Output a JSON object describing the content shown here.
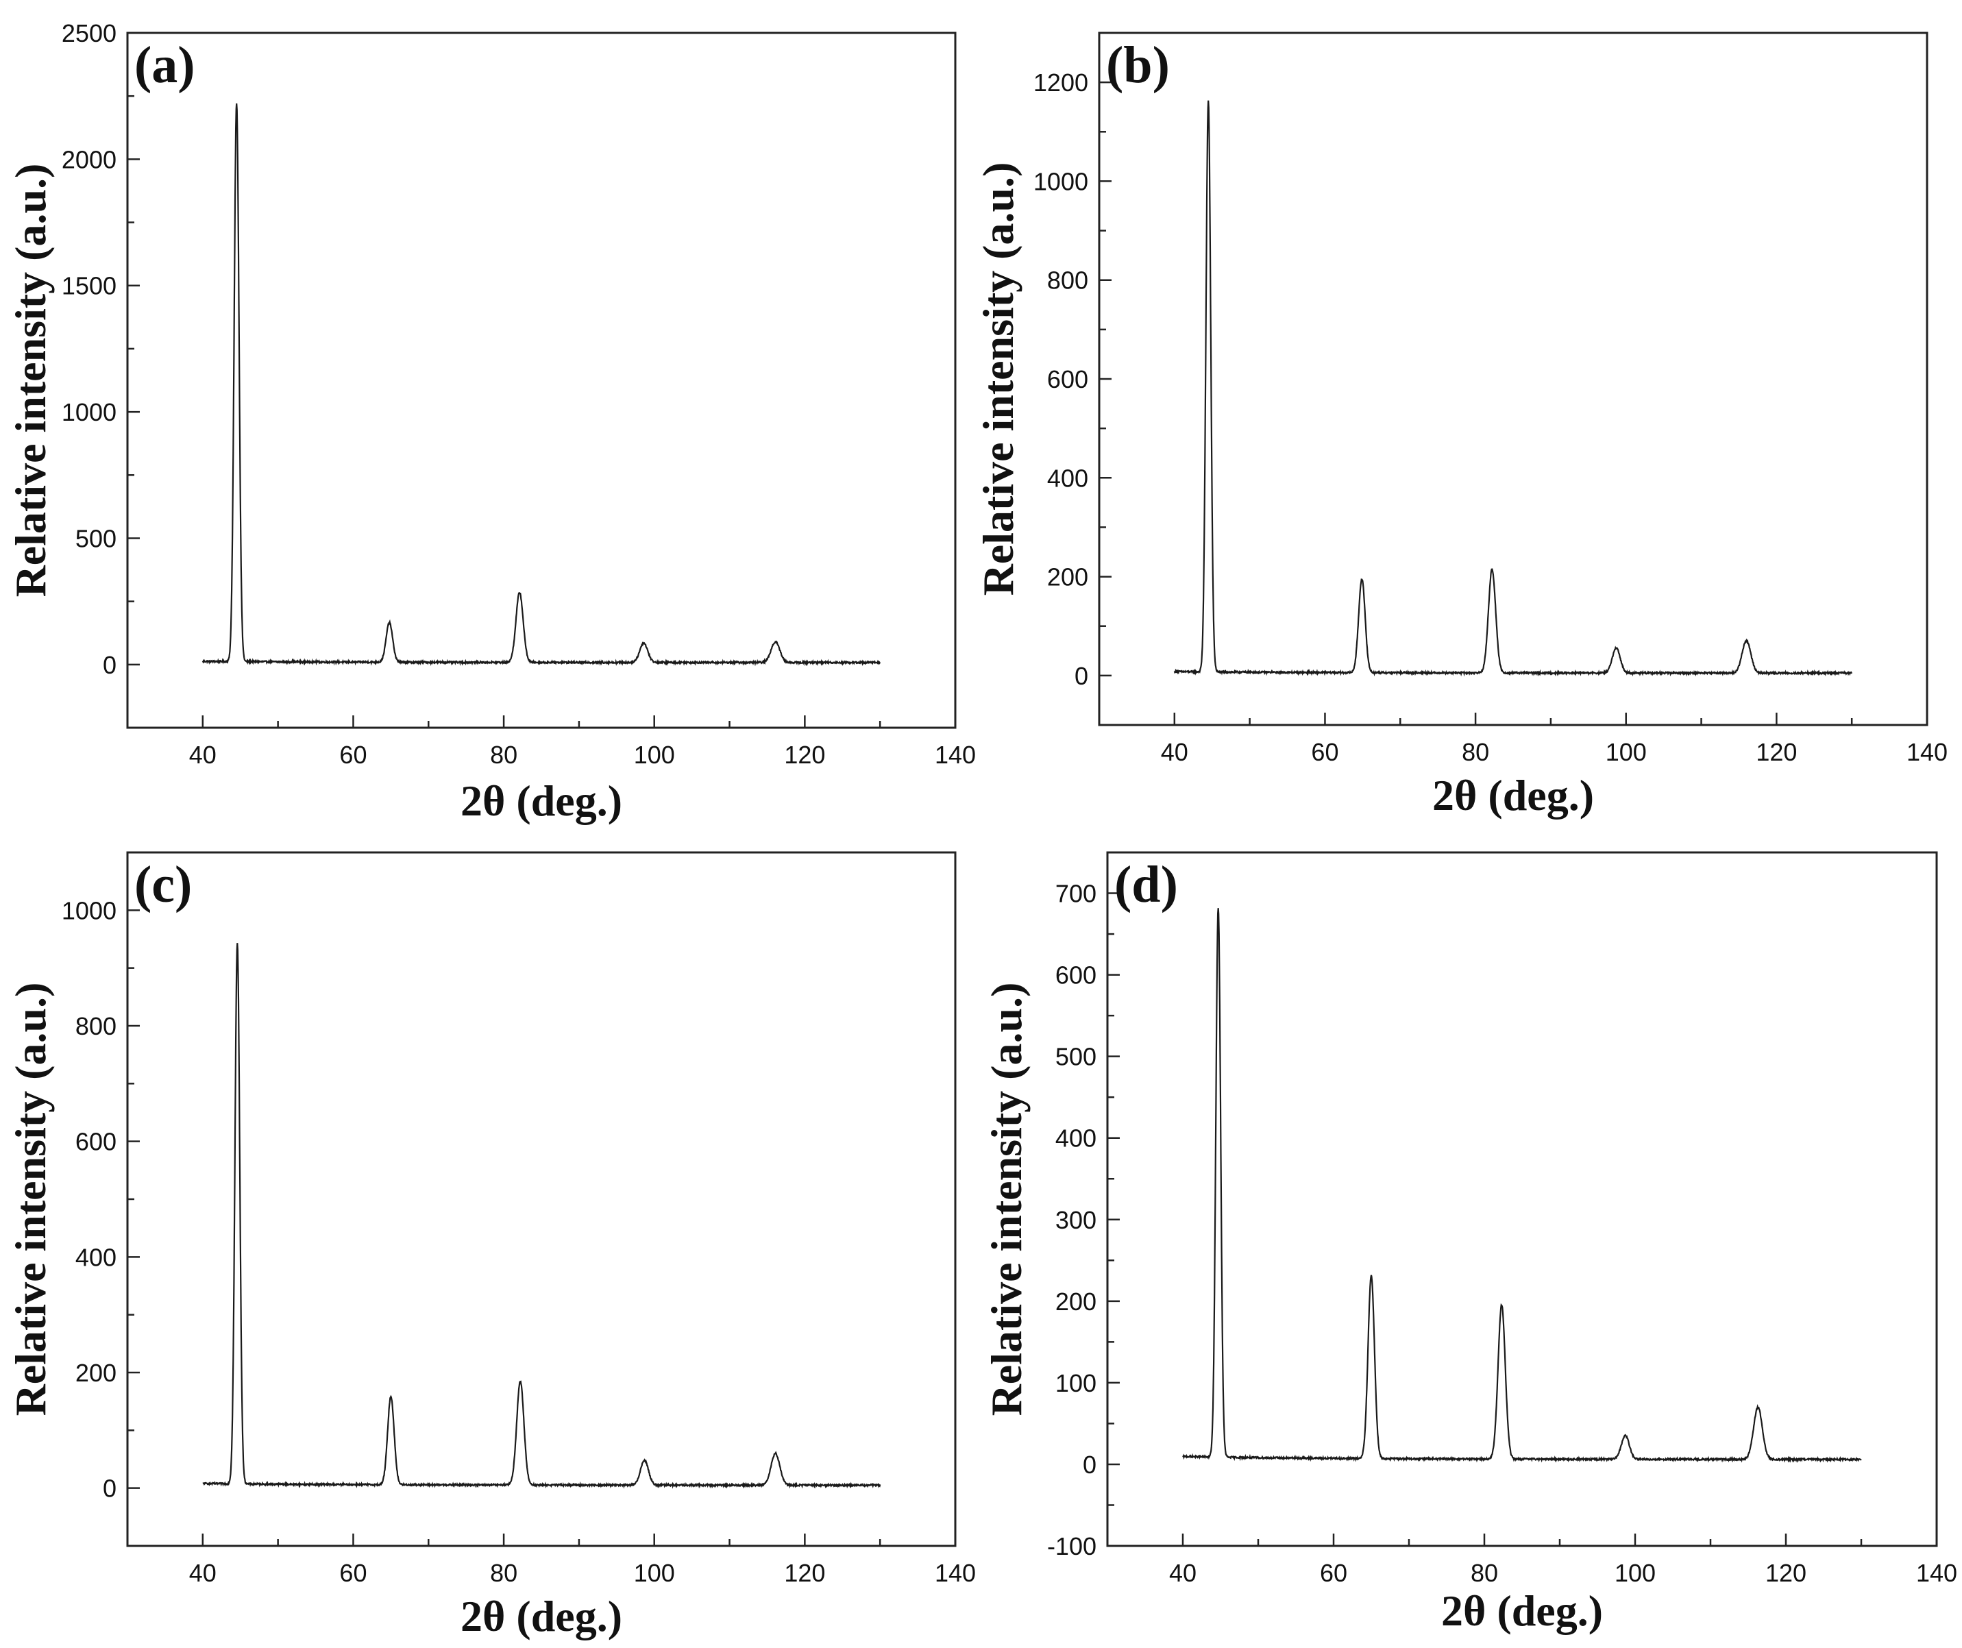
{
  "chart_data": [
    {
      "type": "line",
      "panel": "(a)",
      "xlabel": "2θ (deg.)",
      "ylabel": "Relative intensity (a.u.)",
      "xlim": [
        30,
        140
      ],
      "ylim": [
        -250,
        2500
      ],
      "xticks": [
        40,
        60,
        80,
        100,
        120,
        140
      ],
      "yticks": [
        0,
        500,
        1000,
        1500,
        2000,
        2500
      ],
      "x_range": [
        40,
        130
      ],
      "baseline": 8,
      "peaks": [
        {
          "x": 44.5,
          "y": 2220
        },
        {
          "x": 64.8,
          "y": 165
        },
        {
          "x": 82.1,
          "y": 285
        },
        {
          "x": 98.6,
          "y": 85
        },
        {
          "x": 116.1,
          "y": 90
        }
      ]
    },
    {
      "type": "line",
      "panel": "(b)",
      "xlabel": "2θ (deg.)",
      "ylabel": "Relative intensity (a.u.)",
      "xlim": [
        30,
        140
      ],
      "ylim": [
        -100,
        1300
      ],
      "xticks": [
        40,
        60,
        80,
        100,
        120,
        140
      ],
      "yticks": [
        0,
        200,
        400,
        600,
        800,
        1000,
        1200
      ],
      "x_range": [
        40,
        130
      ],
      "baseline": 5,
      "peaks": [
        {
          "x": 44.5,
          "y": 1160
        },
        {
          "x": 64.9,
          "y": 195
        },
        {
          "x": 82.2,
          "y": 215
        },
        {
          "x": 98.7,
          "y": 55
        },
        {
          "x": 116.0,
          "y": 70
        }
      ]
    },
    {
      "type": "line",
      "panel": "(c)",
      "xlabel": "2θ (deg.)",
      "ylabel": "Relative intensity (a.u.)",
      "xlim": [
        30,
        140
      ],
      "ylim": [
        -100,
        1100
      ],
      "xticks": [
        40,
        60,
        80,
        100,
        120,
        140
      ],
      "yticks": [
        0,
        200,
        400,
        600,
        800,
        1000
      ],
      "x_range": [
        40,
        130
      ],
      "baseline": 5,
      "peaks": [
        {
          "x": 44.6,
          "y": 940
        },
        {
          "x": 65.0,
          "y": 158
        },
        {
          "x": 82.2,
          "y": 185
        },
        {
          "x": 98.7,
          "y": 48
        },
        {
          "x": 116.1,
          "y": 60
        }
      ]
    },
    {
      "type": "line",
      "panel": "(d)",
      "xlabel": "2θ (deg.)",
      "ylabel": "Relative intensity (a.u.)",
      "xlim": [
        30,
        140
      ],
      "ylim": [
        -100,
        750
      ],
      "xticks": [
        40,
        60,
        80,
        100,
        120,
        140
      ],
      "yticks": [
        -100,
        0,
        100,
        200,
        300,
        400,
        500,
        600,
        700
      ],
      "x_range": [
        40,
        130
      ],
      "baseline": 6,
      "peaks": [
        {
          "x": 44.7,
          "y": 680
        },
        {
          "x": 65.0,
          "y": 230
        },
        {
          "x": 82.3,
          "y": 195
        },
        {
          "x": 98.7,
          "y": 35
        },
        {
          "x": 116.3,
          "y": 70
        }
      ]
    }
  ]
}
